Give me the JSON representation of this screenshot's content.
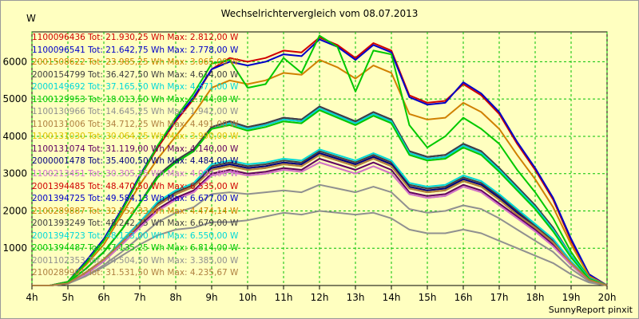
{
  "chart_data": {
    "type": "line",
    "title": "Wechselrichtervergleich vom 08.07.2013",
    "ylabel": "W",
    "footer": "SunnyReport pinxit",
    "x": [
      "4h",
      "4.5h",
      "5h",
      "5.5h",
      "6h",
      "6.5h",
      "7h",
      "7.5h",
      "8h",
      "8.5h",
      "9h",
      "9.5h",
      "10h",
      "10.5h",
      "11h",
      "11.5h",
      "12h",
      "12.5h",
      "13h",
      "13.5h",
      "14h",
      "14.5h",
      "15h",
      "15.5h",
      "16h",
      "16.5h",
      "17h",
      "17.5h",
      "18h",
      "18.5h",
      "19h",
      "19.5h",
      "20h"
    ],
    "x_tick_labels": [
      "4h",
      "5h",
      "6h",
      "7h",
      "8h",
      "9h",
      "10h",
      "11h",
      "12h",
      "13h",
      "14h",
      "15h",
      "16h",
      "17h",
      "18h",
      "19h",
      "20h"
    ],
    "ylim": [
      0,
      6800
    ],
    "y_ticks": [
      1000,
      2000,
      3000,
      4000,
      5000,
      6000
    ],
    "grid": true,
    "legend_placement": "left",
    "series": [
      {
        "label": "1100096436 Tot: 21.930,25 Wh Max: 2.812,00 W",
        "color": "#d00000",
        "values": [
          0,
          0,
          100,
          600,
          1200,
          2000,
          2900,
          3700,
          4400,
          5000,
          5800,
          6100,
          6000,
          6100,
          6300,
          6250,
          6650,
          6450,
          6100,
          6500,
          6300,
          5100,
          4900,
          4950,
          5400,
          5100,
          4600,
          3800,
          3100,
          2300,
          1200,
          300,
          0
        ]
      },
      {
        "label": "1100096541 Tot: 21.642,75 Wh Max: 2.778,00 W",
        "color": "#0000c8",
        "values": [
          0,
          0,
          100,
          650,
          1250,
          2050,
          2950,
          3750,
          4450,
          5050,
          5800,
          6000,
          5900,
          6000,
          6200,
          6150,
          6600,
          6400,
          6050,
          6450,
          6250,
          5050,
          4850,
          4900,
          5450,
          5150,
          4650,
          3850,
          3150,
          2350,
          1250,
          300,
          0
        ]
      },
      {
        "label": "2001508622 Tot: 23.985,25 Wh Max: 3.065,00 W",
        "color": "#d08000",
        "values": [
          0,
          0,
          100,
          550,
          1100,
          1900,
          2700,
          3400,
          4000,
          4600,
          5300,
          5500,
          5400,
          5500,
          5700,
          5650,
          6050,
          5850,
          5550,
          5900,
          5700,
          4600,
          4450,
          4500,
          4900,
          4650,
          4200,
          3500,
          2850,
          2100,
          1100,
          250,
          0
        ]
      },
      {
        "label": "2000154799 Tot: 36.427,50 Wh Max: 4.614,00 W",
        "color": "#404040",
        "values": [
          0,
          0,
          50,
          350,
          700,
          1200,
          1700,
          2200,
          2500,
          2700,
          3200,
          3300,
          3200,
          3250,
          3350,
          3300,
          3600,
          3450,
          3300,
          3500,
          3300,
          2700,
          2600,
          2650,
          2900,
          2750,
          2400,
          2000,
          1600,
          1200,
          600,
          150,
          0
        ]
      },
      {
        "label": "2000149692 Tot: 37.165,50 Wh Max: 4.671,00 W",
        "color": "#00d8d8",
        "values": [
          0,
          0,
          50,
          350,
          700,
          1200,
          1700,
          2250,
          2550,
          2750,
          3250,
          3350,
          3250,
          3300,
          3400,
          3350,
          3650,
          3500,
          3350,
          3550,
          3350,
          2750,
          2650,
          2700,
          2950,
          2800,
          2450,
          2050,
          1650,
          1250,
          650,
          150,
          0
        ]
      },
      {
        "label": "1100129953 Tot: 18.013,50 Wh Max: 2.744,00 W",
        "color": "#00c800",
        "values": [
          0,
          0,
          100,
          600,
          1200,
          2000,
          2900,
          3750,
          4500,
          5150,
          5950,
          6050,
          5300,
          5400,
          6100,
          5700,
          6700,
          6400,
          5200,
          6300,
          6200,
          4300,
          3700,
          4000,
          4500,
          4200,
          3800,
          3100,
          2500,
          1800,
          900,
          200,
          0
        ]
      },
      {
        "label": "1100130966 Tot: 14.645,25 Wh Max: 1.942,00 W",
        "color": "#909090",
        "values": [
          0,
          0,
          50,
          250,
          500,
          800,
          1100,
          1350,
          1500,
          1550,
          1700,
          1700,
          1750,
          1850,
          1950,
          1900,
          2000,
          1950,
          1900,
          1950,
          1800,
          1500,
          1400,
          1400,
          1500,
          1400,
          1200,
          1000,
          800,
          600,
          300,
          80,
          0
        ]
      },
      {
        "label": "1100131006 Tot: 34.712,25 Wh Max: 4.491,00 W",
        "color": "#b08040",
        "values": [
          0,
          0,
          50,
          350,
          700,
          1150,
          1650,
          2150,
          2450,
          2650,
          3150,
          3250,
          3150,
          3200,
          3300,
          3250,
          3550,
          3400,
          3250,
          3450,
          3250,
          2650,
          2550,
          2600,
          2850,
          2700,
          2350,
          1950,
          1550,
          1150,
          600,
          150,
          0
        ]
      },
      {
        "label": "1100131030 Tot: 30.064,25 Wh Max: 3.990,00 W",
        "color": "#e0c000",
        "values": [
          0,
          0,
          50,
          300,
          650,
          1100,
          1550,
          2000,
          2300,
          2500,
          2950,
          3050,
          2950,
          3000,
          3100,
          3050,
          3300,
          3150,
          3000,
          3200,
          3000,
          2450,
          2350,
          2400,
          2650,
          2500,
          2150,
          1800,
          1450,
          1050,
          550,
          130,
          0
        ]
      },
      {
        "label": "1100131074 Tot: 31.119,00 Wh Max: 4.140,00 W",
        "color": "#600060",
        "values": [
          0,
          0,
          50,
          300,
          650,
          1100,
          1600,
          2050,
          2350,
          2550,
          3000,
          3100,
          3000,
          3050,
          3150,
          3100,
          3400,
          3250,
          3100,
          3300,
          3100,
          2500,
          2400,
          2450,
          2700,
          2550,
          2200,
          1850,
          1500,
          1100,
          550,
          130,
          0
        ]
      },
      {
        "label": "2000001478 Tot: 35.400,50 Wh Max: 4.484,00 W",
        "color": "#000080",
        "values": [
          0,
          0,
          50,
          350,
          700,
          1150,
          1650,
          2150,
          2450,
          2650,
          3150,
          3250,
          3150,
          3200,
          3300,
          3250,
          3550,
          3400,
          3250,
          3450,
          3250,
          2650,
          2550,
          2600,
          2850,
          2700,
          2350,
          1950,
          1550,
          1150,
          600,
          150,
          0
        ]
      },
      {
        "label": "1100213451 Tot: 30.305,25 Wh Max: 4.020,00 W",
        "color": "#d070d0",
        "values": [
          0,
          0,
          50,
          300,
          650,
          1100,
          1550,
          2000,
          2300,
          2500,
          2950,
          3050,
          2950,
          3000,
          3100,
          3050,
          3300,
          3150,
          3000,
          3200,
          3000,
          2450,
          2350,
          2400,
          2650,
          2500,
          2150,
          1800,
          1450,
          1050,
          550,
          130,
          0
        ]
      },
      {
        "label": "2001394485 Tot: 48.470,50 Wh Max: 6.535,00 W",
        "color": "#d00000",
        "values": [
          0,
          0,
          80,
          450,
          900,
          1500,
          2200,
          2900,
          3300,
          3600,
          4200,
          4350,
          4200,
          4300,
          4450,
          4400,
          4750,
          4550,
          4350,
          4600,
          4400,
          3550,
          3400,
          3450,
          3750,
          3550,
          3100,
          2600,
          2100,
          1500,
          800,
          200,
          0
        ]
      },
      {
        "label": "2001394725 Tot: 49.584,13 Wh Max: 6.677,00 W",
        "color": "#0000c8",
        "values": [
          0,
          0,
          80,
          450,
          900,
          1500,
          2200,
          2950,
          3350,
          3650,
          4250,
          4400,
          4250,
          4350,
          4500,
          4450,
          4800,
          4600,
          4400,
          4650,
          4450,
          3600,
          3450,
          3500,
          3800,
          3600,
          3150,
          2650,
          2150,
          1550,
          800,
          200,
          0
        ]
      },
      {
        "label": "2100289887 Tot: 32.552,33 Wh Max: 4.474,14 W",
        "color": "#d08000",
        "values": [
          0,
          0,
          60,
          350,
          700,
          1150,
          1650,
          2150,
          2450,
          2650,
          3100,
          3200,
          3100,
          3150,
          3250,
          3200,
          3500,
          3350,
          3200,
          3400,
          3200,
          2600,
          2500,
          2550,
          2800,
          2650,
          2300,
          1900,
          1550,
          1150,
          600,
          150,
          0
        ]
      },
      {
        "label": "2001393249 Tot: 48.242,75 Wh Max: 6.679,00 W",
        "color": "#404040",
        "values": [
          0,
          0,
          80,
          450,
          900,
          1500,
          2200,
          2950,
          3350,
          3650,
          4250,
          4400,
          4250,
          4350,
          4500,
          4450,
          4800,
          4600,
          4400,
          4650,
          4450,
          3600,
          3450,
          3500,
          3800,
          3600,
          3150,
          2650,
          2150,
          1550,
          800,
          200,
          0
        ]
      },
      {
        "label": "2001394723 Tot: 48.133,00 Wh Max: 6.550,00 W",
        "color": "#00d8d8",
        "values": [
          0,
          0,
          80,
          450,
          900,
          1500,
          2200,
          2900,
          3300,
          3600,
          4200,
          4350,
          4200,
          4300,
          4450,
          4400,
          4750,
          4550,
          4350,
          4600,
          4400,
          3550,
          3400,
          3450,
          3750,
          3550,
          3100,
          2600,
          2100,
          1500,
          800,
          200,
          0
        ]
      },
      {
        "label": "2001394487 Tot: 47.135,25 Wh Max: 6.814,00 W",
        "color": "#00c800",
        "values": [
          0,
          0,
          80,
          450,
          900,
          1500,
          2200,
          2900,
          3300,
          3600,
          4200,
          4300,
          4150,
          4250,
          4400,
          4350,
          4700,
          4500,
          4300,
          4550,
          4350,
          3500,
          3350,
          3400,
          3700,
          3500,
          3050,
          2550,
          2050,
          1450,
          750,
          180,
          0
        ]
      },
      {
        "label": "2001102353 Tot: 24.504,50 Wh Max: 3.385,00 W",
        "color": "#909090",
        "values": [
          0,
          0,
          50,
          250,
          550,
          900,
          1300,
          1700,
          1950,
          2100,
          2450,
          2500,
          2450,
          2500,
          2550,
          2500,
          2700,
          2600,
          2500,
          2650,
          2500,
          2050,
          1950,
          2000,
          2150,
          2050,
          1800,
          1500,
          1200,
          900,
          450,
          110,
          0
        ]
      },
      {
        "label": "2100289901 Tot: 31.531,50 Wh Max: 4.235,67 W",
        "color": "#b08040",
        "values": [
          0,
          0,
          60,
          350,
          700,
          1150,
          1650,
          2150,
          2450,
          2650,
          3100,
          3200,
          3100,
          3150,
          3250,
          3200,
          3500,
          3350,
          3200,
          3400,
          3200,
          2600,
          2500,
          2550,
          2800,
          2650,
          2300,
          1900,
          1550,
          1150,
          600,
          150,
          0
        ]
      }
    ]
  }
}
